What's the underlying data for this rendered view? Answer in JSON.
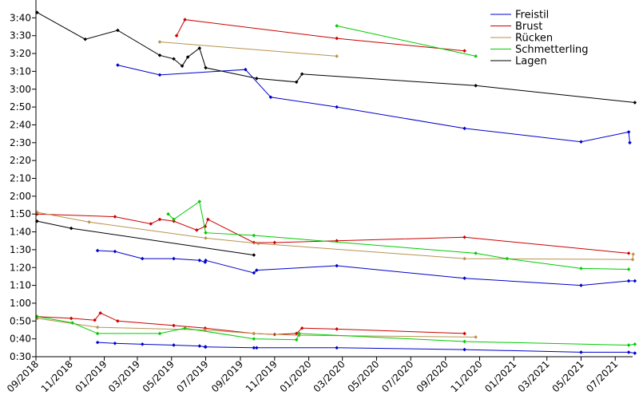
{
  "chart_data": {
    "type": "line",
    "title": "",
    "xlabel": "",
    "ylabel": "",
    "x_format": "date (YYYY-MM-DD)",
    "y_format": "swim time in seconds, tick labels shown as M:SS",
    "xlim": [
      "2018-09-01",
      "2021-08-01"
    ],
    "ylim": [
      30,
      230
    ],
    "x_ticks": [
      "2018-09-01",
      "2018-11-01",
      "2019-01-01",
      "2019-03-01",
      "2019-05-01",
      "2019-07-01",
      "2019-09-01",
      "2019-11-01",
      "2020-01-01",
      "2020-03-01",
      "2020-05-01",
      "2020-07-01",
      "2020-09-01",
      "2020-11-01",
      "2021-01-01",
      "2021-03-01",
      "2021-05-01",
      "2021-07-01"
    ],
    "x_tick_labels": [
      "09/2018",
      "11/2018",
      "01/2019",
      "03/2019",
      "05/2019",
      "07/2019",
      "09/2019",
      "11/2019",
      "01/2020",
      "03/2020",
      "05/2020",
      "07/2020",
      "09/2020",
      "11/2020",
      "01/2021",
      "03/2021",
      "05/2021",
      "07/2021"
    ],
    "y_ticks": [
      30,
      40,
      50,
      60,
      70,
      80,
      90,
      100,
      110,
      120,
      130,
      140,
      150,
      160,
      170,
      180,
      190,
      200,
      210,
      220
    ],
    "y_tick_labels": [
      "0:30",
      "0:40",
      "0:50",
      "1:00",
      "1:10",
      "1:20",
      "1:30",
      "1:40",
      "1:50",
      "2:00",
      "2:10",
      "2:20",
      "2:30",
      "2:40",
      "2:50",
      "3:00",
      "3:10",
      "3:20",
      "3:30",
      "3:40"
    ],
    "grid": false,
    "legend_position": "top-right",
    "series": [
      {
        "name": "Freistil",
        "color": "#0000cc",
        "lines": [
          {
            "x": [
              "2018-12-20",
              "2019-01-20",
              "2019-03-10",
              "2019-05-05",
              "2019-06-20",
              "2019-06-30",
              "2019-07-01",
              "2019-09-25",
              "2019-09-30",
              "2020-02-20",
              "2020-10-05",
              "2021-05-01",
              "2021-07-25",
              "2021-08-05"
            ],
            "y": [
              38,
              37.5,
              37,
              36.5,
              36,
              35.5,
              35.5,
              35,
              35,
              35,
              34,
              32.5,
              32.5,
              32
            ]
          },
          {
            "x": [
              "2018-12-20",
              "2019-01-20",
              "2019-03-10",
              "2019-05-05",
              "2019-06-20",
              "2019-06-30",
              "2019-07-01",
              "2019-09-25",
              "2019-09-30",
              "2020-02-20",
              "2020-10-05",
              "2021-05-01",
              "2021-07-25",
              "2021-08-05"
            ],
            "y": [
              89.5,
              89,
              85,
              85,
              84,
              83,
              84,
              77,
              78.5,
              81,
              74,
              70,
              72.5,
              72.5
            ]
          },
          {
            "x": [
              "2019-01-25",
              "2019-04-10",
              "2019-09-10",
              "2019-10-25",
              "2020-02-20",
              "2020-10-05",
              "2021-05-01",
              "2021-07-25",
              "2021-07-27"
            ],
            "y": [
              193.5,
              188,
              191,
              175.5,
              170,
              158,
              150.5,
              156,
              150
            ]
          }
        ]
      },
      {
        "name": "Brust",
        "color": "#cc0000",
        "lines": [
          {
            "x": [
              "2018-09-03",
              "2018-11-03",
              "2018-12-15",
              "2018-12-25",
              "2019-01-25",
              "2019-05-05",
              "2019-06-30",
              "2019-09-25",
              "2019-11-01",
              "2019-12-10",
              "2019-12-20",
              "2020-02-20",
              "2020-10-05"
            ],
            "y": [
              52.5,
              51.5,
              50.5,
              54.5,
              50,
              47.5,
              46,
              43,
              42.5,
              43,
              46,
              45.5,
              43
            ]
          },
          {
            "x": [
              "2018-09-03",
              "2019-01-20",
              "2019-03-25",
              "2019-04-10",
              "2019-05-05",
              "2019-06-15",
              "2019-06-30",
              "2019-07-05",
              "2019-09-25",
              "2019-11-01",
              "2020-02-20",
              "2020-10-05",
              "2021-07-25"
            ],
            "y": [
              110,
              108.5,
              104.5,
              107,
              106,
              101,
              103,
              107,
              94,
              94,
              95,
              97,
              88
            ]
          },
          {
            "x": [
              "2019-05-10",
              "2019-05-25",
              "2020-02-20",
              "2020-10-05"
            ],
            "y": [
              210,
              219,
              208.5,
              201.5
            ]
          }
        ]
      },
      {
        "name": "Rücken",
        "color": "#b8924f",
        "lines": [
          {
            "x": [
              "2018-09-03",
              "2018-12-20",
              "2019-06-30",
              "2019-09-25",
              "2019-12-15",
              "2020-10-25"
            ],
            "y": [
              51.5,
              46.5,
              45,
              43,
              42,
              41
            ]
          },
          {
            "x": [
              "2018-09-03",
              "2018-12-05",
              "2019-07-01",
              "2019-10-03",
              "2020-10-05",
              "2021-08-01",
              "2021-08-02"
            ],
            "y": [
              111,
              105.5,
              96.5,
              93.5,
              85,
              84.5,
              87.5
            ]
          },
          {
            "x": [
              "2019-04-10",
              "2020-02-20"
            ],
            "y": [
              206.5,
              198.5
            ]
          }
        ]
      },
      {
        "name": "Schmetterling",
        "color": "#00cc00",
        "lines": [
          {
            "x": [
              "2018-09-03",
              "2018-11-05",
              "2018-12-20",
              "2019-04-10",
              "2019-05-25",
              "2019-09-25",
              "2019-12-10",
              "2019-12-15",
              "2020-10-05",
              "2021-07-25",
              "2021-08-05"
            ],
            "y": [
              52.5,
              49,
              43,
              43,
              46,
              40,
              39.5,
              43,
              38.5,
              36.5,
              37
            ]
          },
          {
            "x": [
              "2019-04-25",
              "2019-05-05",
              "2019-06-20",
              "2019-07-01",
              "2019-09-25",
              "2020-10-25",
              "2020-12-20",
              "2021-05-01",
              "2021-07-25"
            ],
            "y": [
              110,
              107,
              117,
              99.5,
              98,
              88,
              85,
              79.5,
              79
            ]
          },
          {
            "x": [
              "2020-02-20",
              "2020-10-25"
            ],
            "y": [
              215.5,
              198.5
            ]
          }
        ]
      },
      {
        "name": "Lagen",
        "color": "#000000",
        "lines": [
          {
            "x": [
              "2018-09-03",
              "2018-11-03",
              "2019-09-25"
            ],
            "y": [
              106,
              102,
              87
            ]
          },
          {
            "x": [
              "2018-09-03",
              "2018-11-28",
              "2019-01-25",
              "2019-04-10",
              "2019-05-05",
              "2019-05-20",
              "2019-05-30",
              "2019-06-20",
              "2019-07-01",
              "2019-09-30",
              "2019-12-10",
              "2019-12-20",
              "2020-10-25",
              "2021-08-05"
            ],
            "y": [
              223,
              208,
              213,
              199,
              197,
              193,
              198,
              203,
              192,
              186,
              184,
              188.5,
              182,
              172.5
            ]
          }
        ]
      }
    ]
  }
}
